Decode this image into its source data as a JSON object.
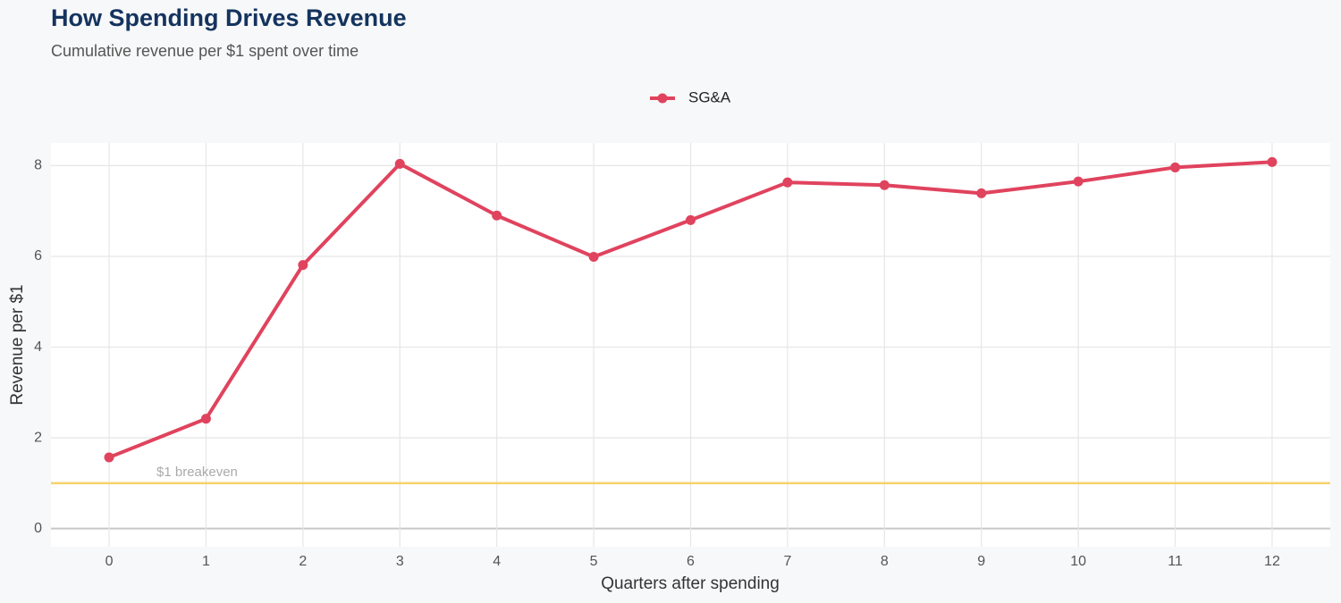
{
  "chart_data": {
    "type": "line",
    "title": "How Spending Drives Revenue",
    "subtitle": "Cumulative revenue per $1 spent over time",
    "x_label": "Quarters after spending",
    "y_label": "Revenue per $1",
    "x": [
      0,
      1,
      2,
      3,
      4,
      5,
      6,
      7,
      8,
      9,
      10,
      11,
      12
    ],
    "series": [
      {
        "name": "SG&A",
        "color": "#e0435e",
        "values": [
          1.57,
          2.42,
          5.81,
          8.04,
          6.9,
          5.99,
          6.8,
          7.63,
          7.57,
          7.39,
          7.65,
          7.96,
          8.08
        ]
      }
    ],
    "xlim": [
      -0.6,
      12.6
    ],
    "ylim": [
      -0.4,
      8.5
    ],
    "xticks": [
      0,
      1,
      2,
      3,
      4,
      5,
      6,
      7,
      8,
      9,
      10,
      11,
      12
    ],
    "yticks": [
      0,
      2,
      4,
      6,
      8
    ],
    "grid": true,
    "legend": "top",
    "reference_line": {
      "value": 1,
      "label": "$1 breakeven",
      "color": "#f5d36b"
    }
  }
}
